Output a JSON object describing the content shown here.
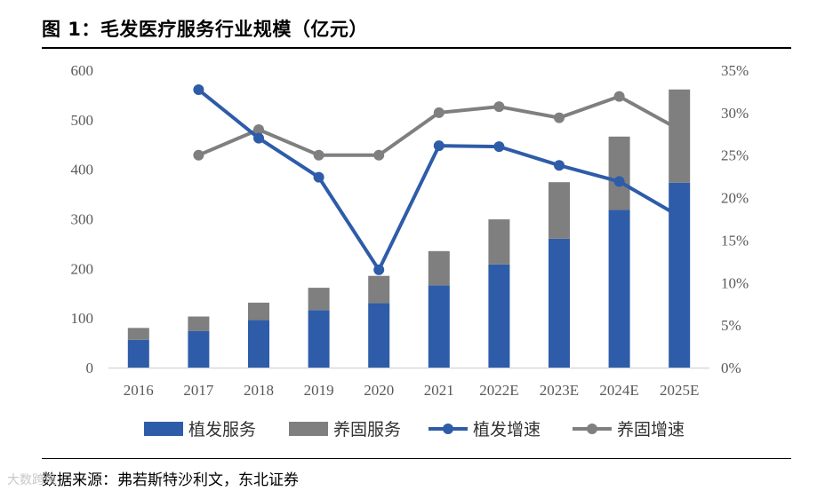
{
  "figure": {
    "title": "图 1：毛发医疗服务行业规模（亿元）",
    "source": "数据来源：弗若斯特沙利文，东北证券",
    "watermark": "大数跨境"
  },
  "colors": {
    "blue": "#2e5ca8",
    "gray": "#7f7f7f",
    "axis": "#d9d9d9"
  },
  "chart_data": {
    "type": "bar",
    "stacked": true,
    "title": "毛发医疗服务行业规模（亿元）",
    "categories": [
      "2016",
      "2017",
      "2018",
      "2019",
      "2020",
      "2021",
      "2022E",
      "2023E",
      "2024E",
      "2025E"
    ],
    "series": [
      {
        "name": "植发服务",
        "type": "bar",
        "axis": "left",
        "values": [
          56,
          74,
          96,
          116,
          130,
          166,
          208,
          260,
          318,
          373
        ]
      },
      {
        "name": "养固服务",
        "type": "bar",
        "axis": "left",
        "values": [
          24,
          29,
          35,
          45,
          55,
          69,
          91,
          114,
          148,
          188
        ]
      },
      {
        "name": "植发增速",
        "type": "line",
        "axis": "right",
        "values": [
          null,
          32.7,
          27.0,
          22.4,
          11.5,
          26.1,
          26.0,
          23.8,
          21.9,
          17.8
        ]
      },
      {
        "name": "养固增速",
        "type": "line",
        "axis": "right",
        "values": [
          null,
          25.0,
          28.0,
          25.0,
          25.0,
          30.0,
          30.7,
          29.4,
          31.9,
          28.0
        ]
      }
    ],
    "left_axis": {
      "ylim": [
        0,
        600
      ],
      "ticks": [
        "0",
        "100",
        "200",
        "300",
        "400",
        "500",
        "600"
      ]
    },
    "right_axis": {
      "ylim": [
        0,
        35
      ],
      "ticks": [
        "0%",
        "5%",
        "10%",
        "15%",
        "20%",
        "25%",
        "30%",
        "35%"
      ]
    },
    "legend": {
      "position": "bottom",
      "labels": [
        "植发服务",
        "养固服务",
        "植发增速",
        "养固增速"
      ]
    }
  }
}
